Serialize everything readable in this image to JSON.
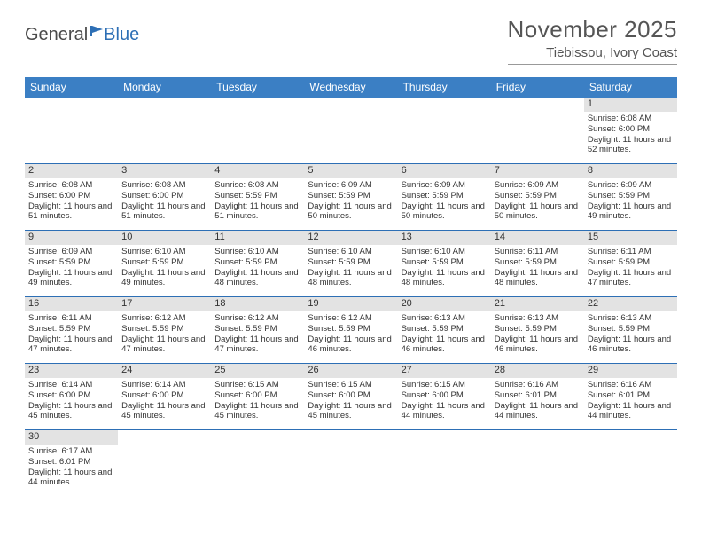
{
  "brand": {
    "general": "General",
    "blue": "Blue",
    "logo_color": "#2d6fb5",
    "text_color": "#4a4a4a"
  },
  "header": {
    "title": "November 2025",
    "location": "Tiebissou, Ivory Coast"
  },
  "colors": {
    "header_bg": "#3b7fc4",
    "row_border": "#2d6fb5",
    "date_bar_bg": "#e3e3e3",
    "background": "#ffffff",
    "text": "#333333"
  },
  "day_labels": [
    "Sunday",
    "Monday",
    "Tuesday",
    "Wednesday",
    "Thursday",
    "Friday",
    "Saturday"
  ],
  "weeks": [
    [
      {
        "date": "",
        "lines": []
      },
      {
        "date": "",
        "lines": []
      },
      {
        "date": "",
        "lines": []
      },
      {
        "date": "",
        "lines": []
      },
      {
        "date": "",
        "lines": []
      },
      {
        "date": "",
        "lines": []
      },
      {
        "date": "1",
        "lines": [
          "Sunrise: 6:08 AM",
          "Sunset: 6:00 PM",
          "Daylight: 11 hours and 52 minutes."
        ]
      }
    ],
    [
      {
        "date": "2",
        "lines": [
          "Sunrise: 6:08 AM",
          "Sunset: 6:00 PM",
          "Daylight: 11 hours and 51 minutes."
        ]
      },
      {
        "date": "3",
        "lines": [
          "Sunrise: 6:08 AM",
          "Sunset: 6:00 PM",
          "Daylight: 11 hours and 51 minutes."
        ]
      },
      {
        "date": "4",
        "lines": [
          "Sunrise: 6:08 AM",
          "Sunset: 5:59 PM",
          "Daylight: 11 hours and 51 minutes."
        ]
      },
      {
        "date": "5",
        "lines": [
          "Sunrise: 6:09 AM",
          "Sunset: 5:59 PM",
          "Daylight: 11 hours and 50 minutes."
        ]
      },
      {
        "date": "6",
        "lines": [
          "Sunrise: 6:09 AM",
          "Sunset: 5:59 PM",
          "Daylight: 11 hours and 50 minutes."
        ]
      },
      {
        "date": "7",
        "lines": [
          "Sunrise: 6:09 AM",
          "Sunset: 5:59 PM",
          "Daylight: 11 hours and 50 minutes."
        ]
      },
      {
        "date": "8",
        "lines": [
          "Sunrise: 6:09 AM",
          "Sunset: 5:59 PM",
          "Daylight: 11 hours and 49 minutes."
        ]
      }
    ],
    [
      {
        "date": "9",
        "lines": [
          "Sunrise: 6:09 AM",
          "Sunset: 5:59 PM",
          "Daylight: 11 hours and 49 minutes."
        ]
      },
      {
        "date": "10",
        "lines": [
          "Sunrise: 6:10 AM",
          "Sunset: 5:59 PM",
          "Daylight: 11 hours and 49 minutes."
        ]
      },
      {
        "date": "11",
        "lines": [
          "Sunrise: 6:10 AM",
          "Sunset: 5:59 PM",
          "Daylight: 11 hours and 48 minutes."
        ]
      },
      {
        "date": "12",
        "lines": [
          "Sunrise: 6:10 AM",
          "Sunset: 5:59 PM",
          "Daylight: 11 hours and 48 minutes."
        ]
      },
      {
        "date": "13",
        "lines": [
          "Sunrise: 6:10 AM",
          "Sunset: 5:59 PM",
          "Daylight: 11 hours and 48 minutes."
        ]
      },
      {
        "date": "14",
        "lines": [
          "Sunrise: 6:11 AM",
          "Sunset: 5:59 PM",
          "Daylight: 11 hours and 48 minutes."
        ]
      },
      {
        "date": "15",
        "lines": [
          "Sunrise: 6:11 AM",
          "Sunset: 5:59 PM",
          "Daylight: 11 hours and 47 minutes."
        ]
      }
    ],
    [
      {
        "date": "16",
        "lines": [
          "Sunrise: 6:11 AM",
          "Sunset: 5:59 PM",
          "Daylight: 11 hours and 47 minutes."
        ]
      },
      {
        "date": "17",
        "lines": [
          "Sunrise: 6:12 AM",
          "Sunset: 5:59 PM",
          "Daylight: 11 hours and 47 minutes."
        ]
      },
      {
        "date": "18",
        "lines": [
          "Sunrise: 6:12 AM",
          "Sunset: 5:59 PM",
          "Daylight: 11 hours and 47 minutes."
        ]
      },
      {
        "date": "19",
        "lines": [
          "Sunrise: 6:12 AM",
          "Sunset: 5:59 PM",
          "Daylight: 11 hours and 46 minutes."
        ]
      },
      {
        "date": "20",
        "lines": [
          "Sunrise: 6:13 AM",
          "Sunset: 5:59 PM",
          "Daylight: 11 hours and 46 minutes."
        ]
      },
      {
        "date": "21",
        "lines": [
          "Sunrise: 6:13 AM",
          "Sunset: 5:59 PM",
          "Daylight: 11 hours and 46 minutes."
        ]
      },
      {
        "date": "22",
        "lines": [
          "Sunrise: 6:13 AM",
          "Sunset: 5:59 PM",
          "Daylight: 11 hours and 46 minutes."
        ]
      }
    ],
    [
      {
        "date": "23",
        "lines": [
          "Sunrise: 6:14 AM",
          "Sunset: 6:00 PM",
          "Daylight: 11 hours and 45 minutes."
        ]
      },
      {
        "date": "24",
        "lines": [
          "Sunrise: 6:14 AM",
          "Sunset: 6:00 PM",
          "Daylight: 11 hours and 45 minutes."
        ]
      },
      {
        "date": "25",
        "lines": [
          "Sunrise: 6:15 AM",
          "Sunset: 6:00 PM",
          "Daylight: 11 hours and 45 minutes."
        ]
      },
      {
        "date": "26",
        "lines": [
          "Sunrise: 6:15 AM",
          "Sunset: 6:00 PM",
          "Daylight: 11 hours and 45 minutes."
        ]
      },
      {
        "date": "27",
        "lines": [
          "Sunrise: 6:15 AM",
          "Sunset: 6:00 PM",
          "Daylight: 11 hours and 44 minutes."
        ]
      },
      {
        "date": "28",
        "lines": [
          "Sunrise: 6:16 AM",
          "Sunset: 6:01 PM",
          "Daylight: 11 hours and 44 minutes."
        ]
      },
      {
        "date": "29",
        "lines": [
          "Sunrise: 6:16 AM",
          "Sunset: 6:01 PM",
          "Daylight: 11 hours and 44 minutes."
        ]
      }
    ],
    [
      {
        "date": "30",
        "lines": [
          "Sunrise: 6:17 AM",
          "Sunset: 6:01 PM",
          "Daylight: 11 hours and 44 minutes."
        ]
      },
      {
        "date": "",
        "lines": []
      },
      {
        "date": "",
        "lines": []
      },
      {
        "date": "",
        "lines": []
      },
      {
        "date": "",
        "lines": []
      },
      {
        "date": "",
        "lines": []
      },
      {
        "date": "",
        "lines": []
      }
    ]
  ]
}
